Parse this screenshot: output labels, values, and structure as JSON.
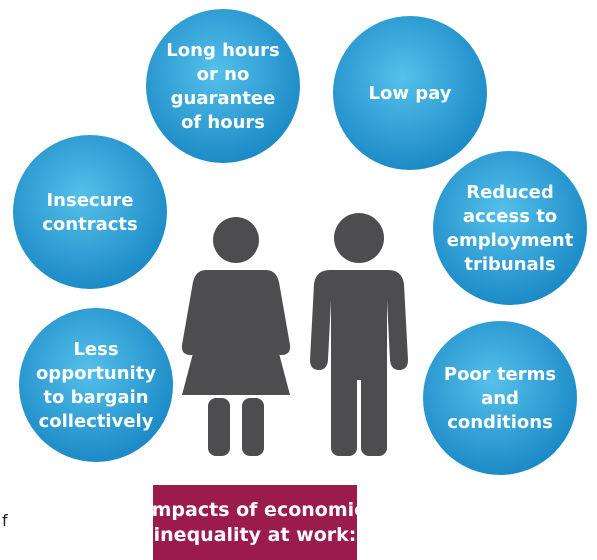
{
  "nodes": [
    {
      "lines": [
        "Long hours",
        "or no",
        "guarantee",
        "of hours"
      ]
    },
    {
      "lines": [
        "Low pay"
      ]
    },
    {
      "lines": [
        "Insecure",
        "contracts"
      ]
    },
    {
      "lines": [
        "Reduced",
        "access to",
        "employment",
        "tribunals"
      ]
    },
    {
      "lines": [
        "Less",
        "opportunity",
        "to bargain",
        "collectively"
      ]
    },
    {
      "lines": [
        "Poor terms",
        "and",
        "conditions"
      ]
    }
  ],
  "title": {
    "lines": [
      "Impacts of economic",
      "inequality at work:"
    ]
  },
  "fragment": "f"
}
